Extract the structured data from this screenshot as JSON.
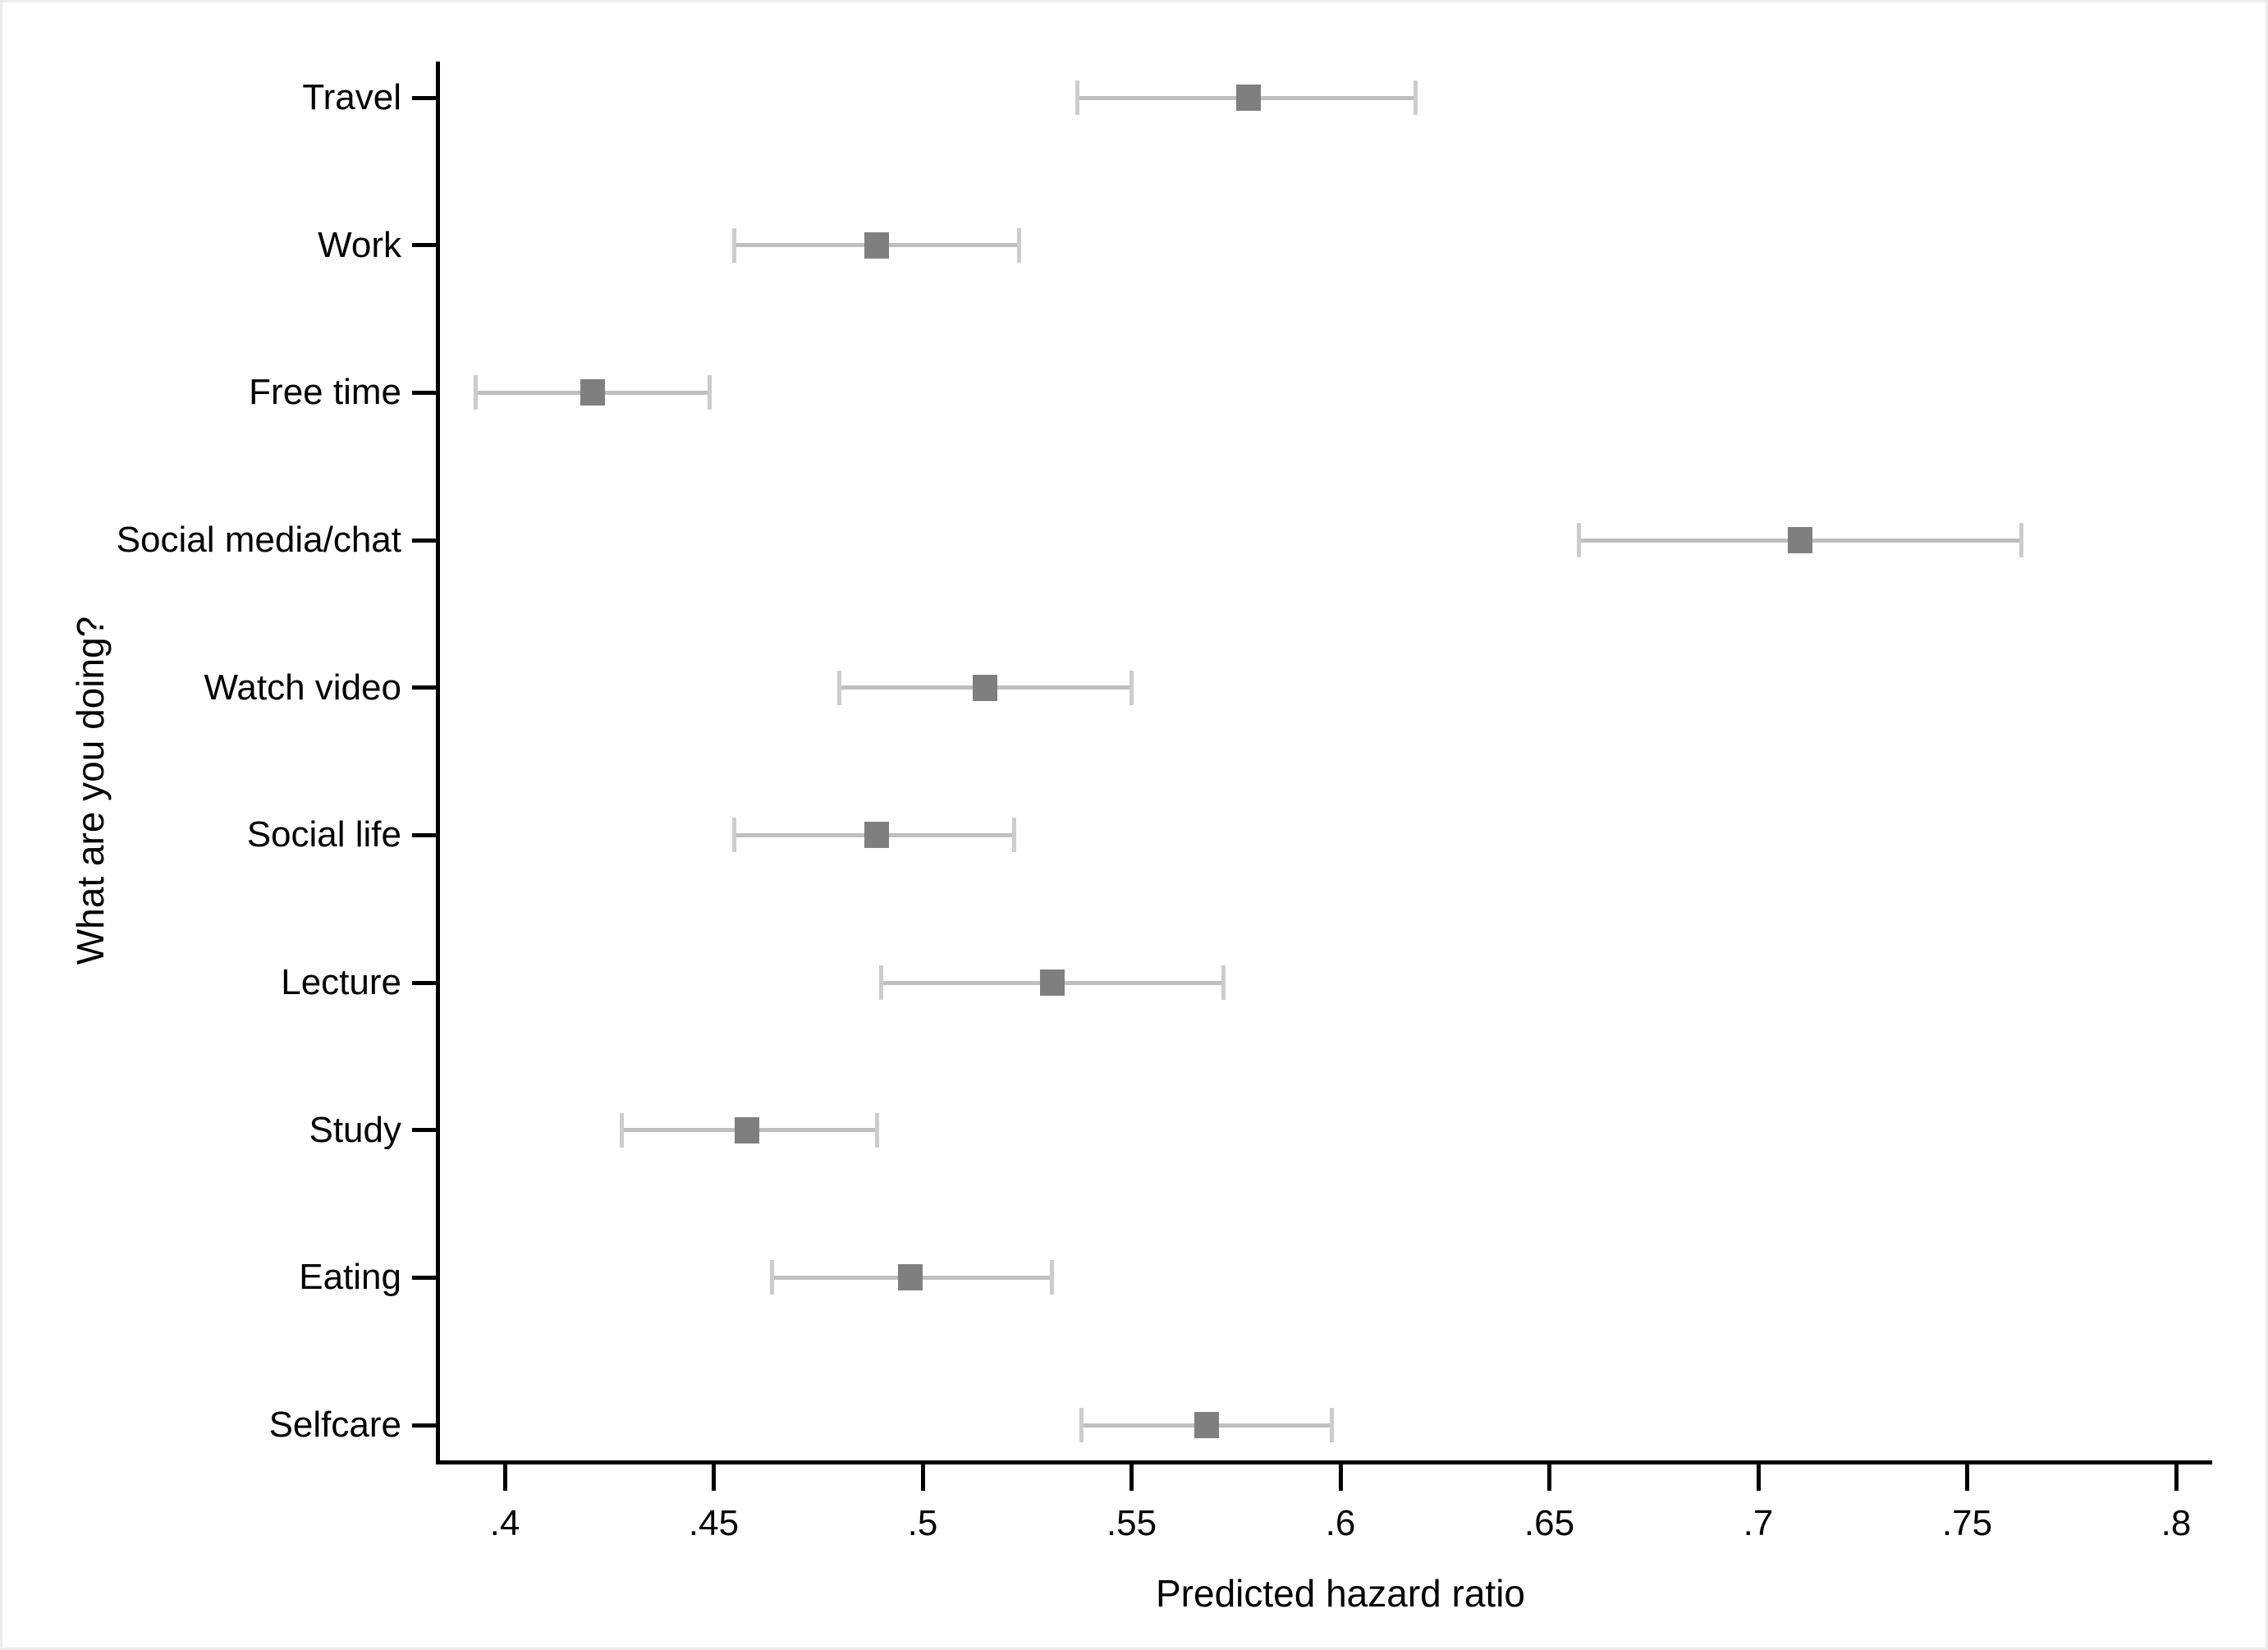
{
  "chart_data": {
    "type": "scatter",
    "subtype": "dot-whisker-forest-plot",
    "orientation": "horizontal",
    "title": "",
    "xlabel": "Predicted hazard ratio",
    "ylabel": "What are you doing?",
    "xlim": [
      0.4,
      0.8
    ],
    "x_tick_values": [
      0.4,
      0.45,
      0.5,
      0.55,
      0.6,
      0.65,
      0.7,
      0.75,
      0.8
    ],
    "x_tick_labels": [
      ".4",
      ".45",
      ".5",
      ".55",
      ".6",
      ".65",
      ".7",
      ".75",
      ".8"
    ],
    "categories": [
      "Travel",
      "Work",
      "Free time",
      "Social media/chat",
      "Watch video",
      "Social life",
      "Lecture",
      "Study",
      "Eating",
      "Selfcare"
    ],
    "series": [
      {
        "name": "Predicted hazard ratio",
        "values": [
          0.578,
          0.489,
          0.421,
          0.71,
          0.515,
          0.489,
          0.531,
          0.458,
          0.497,
          0.568
        ],
        "ci_low": [
          0.537,
          0.455,
          0.393,
          0.657,
          0.48,
          0.455,
          0.49,
          0.428,
          0.464,
          0.538
        ],
        "ci_high": [
          0.618,
          0.523,
          0.449,
          0.763,
          0.55,
          0.522,
          0.572,
          0.489,
          0.531,
          0.598
        ]
      }
    ],
    "grid": false,
    "legend": false,
    "marker_shape": "square",
    "colors": {
      "marker": "#7f7f7f",
      "ci_line": "#bfbfbf",
      "ci_cap": "#cccccc",
      "axis": "#000000",
      "text": "#000000",
      "background": "#ffffff"
    }
  }
}
